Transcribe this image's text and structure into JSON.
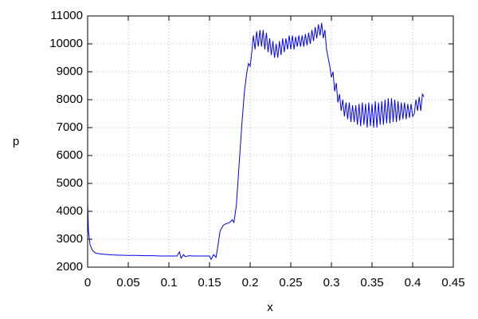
{
  "chart_data": {
    "type": "line",
    "x_label": "x",
    "y_label": "p",
    "x": [
      0,
      0.001,
      0.003,
      0.006,
      0.01,
      0.015,
      0.02,
      0.03,
      0.04,
      0.05,
      0.06,
      0.07,
      0.08,
      0.09,
      0.1,
      0.11,
      0.113,
      0.115,
      0.118,
      0.12,
      0.125,
      0.13,
      0.14,
      0.15,
      0.152,
      0.155,
      0.158,
      0.16,
      0.163,
      0.167,
      0.17,
      0.175,
      0.178,
      0.18,
      0.183,
      0.186,
      0.19,
      0.193,
      0.196,
      0.198,
      0.2,
      0.202,
      0.204,
      0.206,
      0.208,
      0.21,
      0.212,
      0.214,
      0.216,
      0.218,
      0.22,
      0.222,
      0.224,
      0.226,
      0.228,
      0.23,
      0.232,
      0.234,
      0.236,
      0.238,
      0.24,
      0.242,
      0.244,
      0.246,
      0.248,
      0.25,
      0.252,
      0.254,
      0.256,
      0.258,
      0.26,
      0.262,
      0.264,
      0.266,
      0.268,
      0.27,
      0.272,
      0.274,
      0.276,
      0.278,
      0.28,
      0.282,
      0.284,
      0.286,
      0.288,
      0.29,
      0.292,
      0.294,
      0.296,
      0.298,
      0.3,
      0.302,
      0.304,
      0.306,
      0.308,
      0.31,
      0.312,
      0.314,
      0.316,
      0.318,
      0.32,
      0.322,
      0.324,
      0.326,
      0.328,
      0.33,
      0.332,
      0.334,
      0.336,
      0.338,
      0.34,
      0.342,
      0.344,
      0.346,
      0.348,
      0.35,
      0.352,
      0.354,
      0.356,
      0.358,
      0.36,
      0.362,
      0.364,
      0.366,
      0.368,
      0.37,
      0.372,
      0.374,
      0.376,
      0.378,
      0.38,
      0.382,
      0.384,
      0.386,
      0.388,
      0.39,
      0.392,
      0.394,
      0.396,
      0.398,
      0.4,
      0.402,
      0.404,
      0.406,
      0.408,
      0.41,
      0.412,
      0.414
    ],
    "series": [
      {
        "color": "#0000ff",
        "values": [
          4300,
          3300,
          2800,
          2600,
          2500,
          2480,
          2460,
          2440,
          2430,
          2420,
          2420,
          2410,
          2410,
          2400,
          2400,
          2400,
          2550,
          2320,
          2450,
          2380,
          2410,
          2400,
          2400,
          2400,
          2280,
          2450,
          2350,
          2700,
          3300,
          3500,
          3550,
          3600,
          3700,
          3600,
          4200,
          5500,
          7200,
          8300,
          9000,
          9300,
          9200,
          9700,
          10300,
          9800,
          10450,
          9900,
          10500,
          9900,
          10500,
          9800,
          10400,
          9700,
          10200,
          9600,
          10100,
          9500,
          10000,
          9500,
          10100,
          9600,
          10200,
          9700,
          10200,
          9800,
          10300,
          9800,
          10300,
          9800,
          10250,
          9900,
          10300,
          9900,
          10300,
          9900,
          10350,
          9950,
          10400,
          10000,
          10500,
          10100,
          10600,
          10200,
          10700,
          10300,
          10750,
          10200,
          10500,
          9800,
          9500,
          9200,
          8800,
          9000,
          8300,
          8600,
          7900,
          8200,
          7600,
          8000,
          7400,
          7900,
          7300,
          7900,
          7200,
          7800,
          7200,
          7800,
          7100,
          7850,
          7050,
          7900,
          7100,
          7850,
          7000,
          7900,
          7050,
          7850,
          7000,
          7950,
          7000,
          7900,
          7100,
          7950,
          7100,
          8000,
          7150,
          8050,
          7150,
          8050,
          7200,
          8000,
          7200,
          7950,
          7250,
          7900,
          7300,
          7900,
          7300,
          7850,
          7350,
          7850,
          7400,
          7500,
          8000,
          7600,
          8100,
          7600,
          8200,
          8100
        ]
      }
    ],
    "xlim": [
      0,
      0.45
    ],
    "xticks": [
      0,
      0.05,
      0.1,
      0.15,
      0.2,
      0.25,
      0.3,
      0.35,
      0.4,
      0.45
    ],
    "ylim": [
      2000,
      11000
    ],
    "yticks": [
      2000,
      3000,
      4000,
      5000,
      6000,
      7000,
      8000,
      9000,
      10000,
      11000
    ],
    "grid": true
  }
}
